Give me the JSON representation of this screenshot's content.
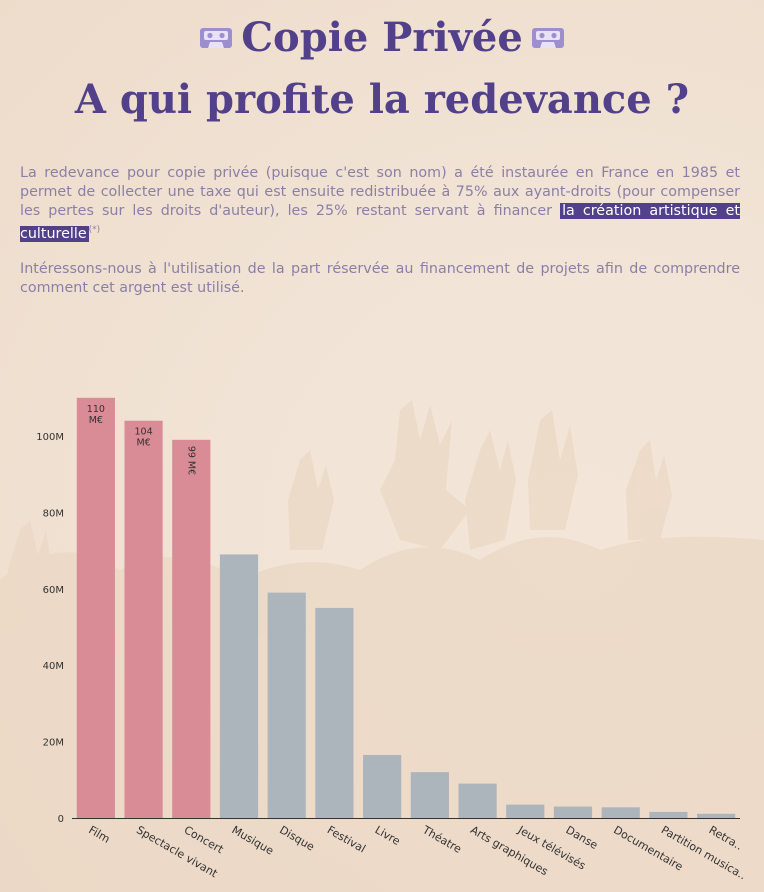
{
  "header": {
    "title_line1": "Copie Privée",
    "title_line2": "A qui profite la redevance ?",
    "title_icon": "cassette-icon"
  },
  "intro": {
    "p1_text": "La redevance pour copie privée (puisque c'est son nom) a été instaurée en France en 1985 et permet de collecter une taxe qui est ensuite redistribuée à 75% aux ayant-droits (pour compenser les pertes sur les droits d'auteur), les 25% restant servant à financer ",
    "p1_highlight": "la création artistique et culturelle",
    "p1_note": "(*)",
    "p2_text": "Intéressons-nous à l'utilisation de la part réservée au financement de projets afin de comprendre comment cet argent est utilisé."
  },
  "colors": {
    "title": "#52418a",
    "text": "#8b7fa6",
    "highlight_bg": "#52418a",
    "bar_highlight": "#d98b96",
    "bar_default": "#acb4bc"
  },
  "chart_data": {
    "type": "bar",
    "categories": [
      "Film",
      "Spectacle vivant",
      "Concert",
      "Musique",
      "Disque",
      "Festival",
      "Livre",
      "Théatre",
      "Arts graphiques",
      "Jeux télévisés",
      "Danse",
      "Documentaire",
      "Partition musica..",
      "Retra.."
    ],
    "values": [
      110,
      104,
      99,
      69,
      59,
      55,
      16.5,
      12,
      9,
      3.5,
      3,
      2.8,
      1.6,
      1.1
    ],
    "highlighted": [
      true,
      true,
      true,
      false,
      false,
      false,
      false,
      false,
      false,
      false,
      false,
      false,
      false,
      false
    ],
    "data_labels": [
      "110 M€",
      "104 M€",
      "99 M€",
      "",
      "",
      "",
      "",
      "",
      "",
      "",
      "",
      "",
      "",
      ""
    ],
    "y_ticks": [
      "0",
      "20M",
      "40M",
      "60M",
      "80M",
      "100M"
    ],
    "y_tick_values": [
      0,
      20,
      40,
      60,
      80,
      100
    ],
    "ylim": [
      0,
      110
    ],
    "grid": false,
    "legend": "none",
    "title": "",
    "xlabel": "",
    "ylabel": ""
  }
}
